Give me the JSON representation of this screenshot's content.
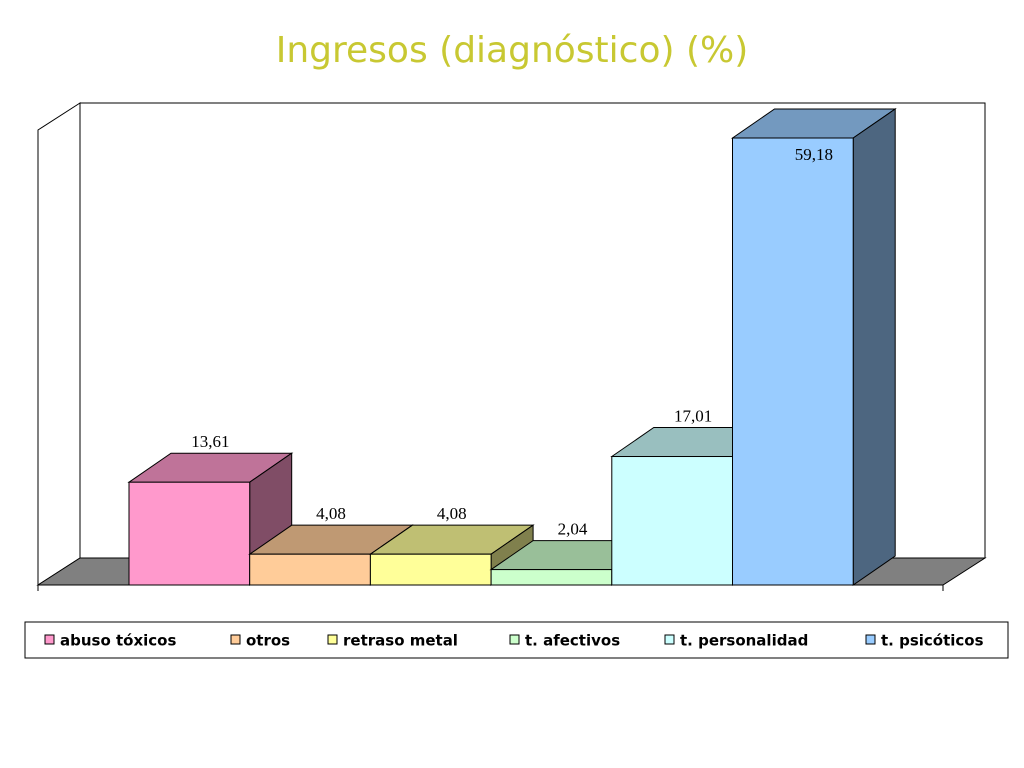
{
  "chart_data": {
    "type": "bar3d",
    "title": "Ingresos (diagnóstico) (%)",
    "series": [
      {
        "name": "abuso tóxicos",
        "color": "#ff99cc",
        "values": [
          13.61
        ],
        "value_labels": [
          "13,61"
        ]
      },
      {
        "name": "otros",
        "color": "#ffcc99",
        "values": [
          4.08
        ],
        "value_labels": [
          "4,08"
        ]
      },
      {
        "name": "retraso metal",
        "color": "#ffff99",
        "values": [
          4.08
        ],
        "value_labels": [
          "4,08"
        ]
      },
      {
        "name": "t. afectivos",
        "color": "#ccffcc",
        "values": [
          2.04
        ],
        "value_labels": [
          "2,04"
        ]
      },
      {
        "name": "t. personalidad",
        "color": "#ccffff",
        "values": [
          17.01
        ],
        "value_labels": [
          "17,01"
        ]
      },
      {
        "name": "t. psicóticos",
        "color": "#99ccff",
        "values": [
          59.18
        ],
        "value_labels": [
          "59,18"
        ]
      }
    ]
  }
}
